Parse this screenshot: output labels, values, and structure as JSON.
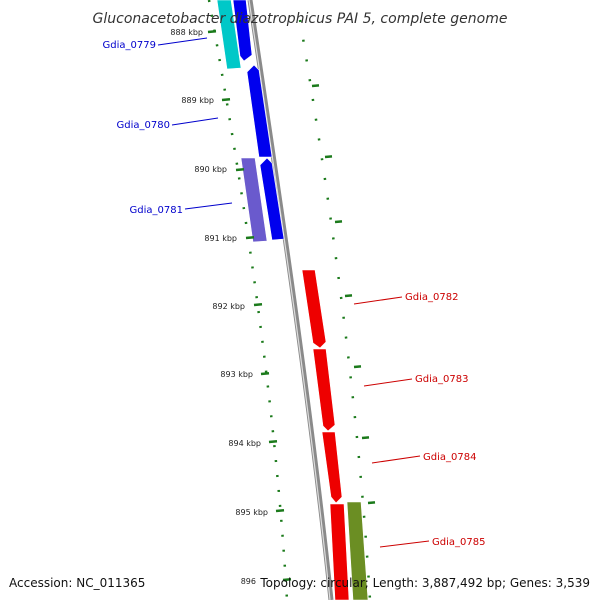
{
  "title": "Gluconacetobacter diazotrophicus PAI 5, complete genome",
  "accession": "Accession: NC_011365",
  "topology": "Topology: circular; Length: 3,887,492 bp; Genes: 3,539",
  "colors": {
    "backbone": "#8a8a8a",
    "tick": "#1b7a1b",
    "forward_label": "#0000cc",
    "reverse_label": "#cc0000"
  },
  "ticks": [
    {
      "kbp": 888,
      "label": "888 kbp"
    },
    {
      "kbp": 889,
      "label": "889 kbp"
    },
    {
      "kbp": 890,
      "label": "890 kbp"
    },
    {
      "kbp": 891,
      "label": "891 kbp"
    },
    {
      "kbp": 892,
      "label": "892 kbp"
    },
    {
      "kbp": 893,
      "label": "893 kbp"
    },
    {
      "kbp": 894,
      "label": "894 kbp"
    },
    {
      "kbp": 895,
      "label": "895 kbp"
    },
    {
      "kbp": 896,
      "label": "896"
    }
  ],
  "genes": [
    {
      "name": "Gdia_0779",
      "strand": "forward",
      "color": "#00c8c8"
    },
    {
      "name": "Gdia_0780",
      "strand": "forward",
      "color": "#0000ee"
    },
    {
      "name": "Gdia_0781",
      "strand": "forward",
      "color": "#6a5acd"
    },
    {
      "name": "Gdia_0782",
      "strand": "reverse",
      "color": "#ee0000"
    },
    {
      "name": "Gdia_0783",
      "strand": "reverse",
      "color": "#ee0000"
    },
    {
      "name": "Gdia_0784",
      "strand": "reverse",
      "color": "#ee0000"
    },
    {
      "name": "Gdia_0785",
      "strand": "reverse",
      "color": "#6b8e23"
    }
  ]
}
